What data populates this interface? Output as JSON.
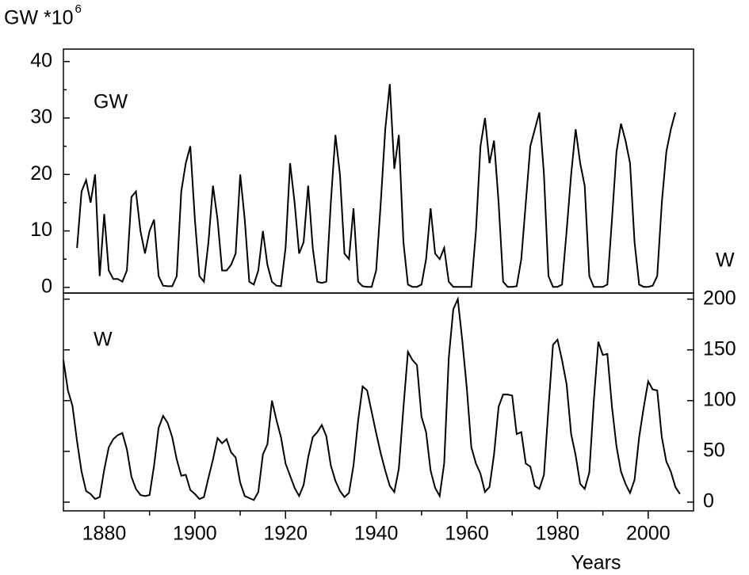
{
  "chart_data": [
    {
      "type": "line",
      "ylabel": "GW *10",
      "ylabel_exponent": "6",
      "annotation": "GW",
      "color": "#000000",
      "xlim": [
        1871,
        2010
      ],
      "ylim": [
        -1,
        42.2
      ],
      "yticks": [
        0,
        10,
        20,
        30,
        40
      ],
      "yminorticks": [
        5,
        15,
        25,
        35
      ],
      "x": [
        1874,
        1875,
        1876,
        1877,
        1878,
        1879,
        1880,
        1881,
        1882,
        1883,
        1884,
        1885,
        1886,
        1887,
        1888,
        1889,
        1890,
        1891,
        1892,
        1893,
        1894,
        1895,
        1896,
        1897,
        1898,
        1899,
        1900,
        1901,
        1902,
        1903,
        1904,
        1905,
        1906,
        1907,
        1908,
        1909,
        1910,
        1911,
        1912,
        1913,
        1914,
        1915,
        1916,
        1917,
        1918,
        1919,
        1920,
        1921,
        1922,
        1923,
        1924,
        1925,
        1926,
        1927,
        1928,
        1929,
        1930,
        1931,
        1932,
        1933,
        1934,
        1935,
        1936,
        1937,
        1938,
        1939,
        1940,
        1941,
        1942,
        1943,
        1944,
        1945,
        1946,
        1947,
        1948,
        1949,
        1950,
        1951,
        1952,
        1953,
        1954,
        1955,
        1956,
        1957,
        1958,
        1959,
        1960,
        1961,
        1962,
        1963,
        1964,
        1965,
        1966,
        1967,
        1968,
        1969,
        1970,
        1971,
        1972,
        1973,
        1974,
        1975,
        1976,
        1977,
        1978,
        1979,
        1980,
        1981,
        1982,
        1983,
        1984,
        1985,
        1986,
        1987,
        1988,
        1989,
        1990,
        1991,
        1992,
        1993,
        1994,
        1995,
        1996,
        1997,
        1998,
        1999,
        2000,
        2001,
        2002,
        2003,
        2004,
        2005,
        2006
      ],
      "values": [
        7,
        17,
        19,
        15,
        20,
        2,
        13,
        3,
        1.5,
        1.5,
        1,
        3,
        16,
        17,
        10,
        6,
        10,
        12,
        2,
        0.3,
        0.2,
        0.2,
        2,
        17,
        22,
        25,
        12,
        2,
        1,
        8,
        18,
        12,
        3,
        3,
        4,
        6,
        20,
        12,
        1,
        0.5,
        3,
        10,
        4,
        1,
        0.3,
        0.2,
        7,
        22,
        15,
        6,
        8,
        18,
        7,
        1,
        0.8,
        1,
        15,
        27,
        20,
        6,
        5,
        14,
        1,
        0.2,
        0.1,
        0.1,
        3,
        15,
        28,
        36,
        21,
        27,
        8,
        0.5,
        0.1,
        0.1,
        0.5,
        5,
        14,
        6,
        5,
        7,
        1,
        0.1,
        0.1,
        0.1,
        0.1,
        0.1,
        10,
        25,
        30,
        22,
        26,
        15,
        1,
        0.1,
        0.1,
        0.2,
        5,
        15,
        25,
        28,
        31,
        20,
        2,
        0.1,
        0.1,
        0.5,
        10,
        20,
        28,
        22,
        18,
        2,
        0.1,
        0.1,
        0.1,
        0.5,
        12,
        24,
        29,
        26,
        22,
        8,
        0.5,
        0.1,
        0.1,
        0.3,
        2,
        15,
        24,
        28,
        31
      ]
    },
    {
      "type": "line",
      "ylabel": "W",
      "ylabel_side": "right",
      "annotation": "W",
      "xlabel": "Years",
      "color": "#000000",
      "xlim": [
        1871,
        2010
      ],
      "xticks": [
        1880,
        1900,
        1920,
        1940,
        1960,
        1980,
        2000
      ],
      "xminorticks": [
        1890,
        1910,
        1930,
        1950,
        1970,
        1990
      ],
      "ylim": [
        -8.6,
        206
      ],
      "yticks": [
        0,
        50,
        100,
        150,
        200
      ],
      "x": [
        1871,
        1872,
        1873,
        1874,
        1875,
        1876,
        1877,
        1878,
        1879,
        1880,
        1881,
        1882,
        1883,
        1884,
        1885,
        1886,
        1887,
        1888,
        1889,
        1890,
        1891,
        1892,
        1893,
        1894,
        1895,
        1896,
        1897,
        1898,
        1899,
        1900,
        1901,
        1902,
        1903,
        1904,
        1905,
        1906,
        1907,
        1908,
        1909,
        1910,
        1911,
        1912,
        1913,
        1914,
        1915,
        1916,
        1917,
        1918,
        1919,
        1920,
        1921,
        1922,
        1923,
        1924,
        1925,
        1926,
        1927,
        1928,
        1929,
        1930,
        1931,
        1932,
        1933,
        1934,
        1935,
        1936,
        1937,
        1938,
        1939,
        1940,
        1941,
        1942,
        1943,
        1944,
        1945,
        1946,
        1947,
        1948,
        1949,
        1950,
        1951,
        1952,
        1953,
        1954,
        1955,
        1956,
        1957,
        1958,
        1959,
        1960,
        1961,
        1962,
        1963,
        1964,
        1965,
        1966,
        1967,
        1968,
        1969,
        1970,
        1971,
        1972,
        1973,
        1974,
        1975,
        1976,
        1977,
        1978,
        1979,
        1980,
        1981,
        1982,
        1983,
        1984,
        1985,
        1986,
        1987,
        1988,
        1989,
        1990,
        1991,
        1992,
        1993,
        1994,
        1995,
        1996,
        1997,
        1998,
        1999,
        2000,
        2001,
        2002,
        2003,
        2004,
        2005,
        2006,
        2007
      ],
      "values": [
        140,
        110,
        95,
        60,
        30,
        11,
        8,
        3,
        5,
        32,
        54,
        62,
        66,
        68,
        52,
        25,
        13,
        7,
        6,
        7,
        36,
        73,
        85,
        78,
        64,
        42,
        26,
        27,
        12,
        8,
        3,
        5,
        24,
        42,
        63,
        58,
        62,
        49,
        44,
        19,
        6,
        4,
        2,
        10,
        47,
        57,
        100,
        81,
        64,
        38,
        26,
        14,
        6,
        17,
        44,
        64,
        69,
        76,
        65,
        36,
        21,
        11,
        5,
        9,
        36,
        80,
        114,
        110,
        89,
        68,
        48,
        31,
        16,
        10,
        33,
        93,
        148,
        140,
        135,
        84,
        69,
        31,
        14,
        6,
        38,
        142,
        190,
        200,
        159,
        112,
        54,
        38,
        28,
        10,
        15,
        47,
        94,
        106,
        106,
        105,
        67,
        69,
        38,
        35,
        16,
        13,
        27,
        93,
        155,
        160,
        140,
        116,
        67,
        46,
        18,
        13,
        29,
        100,
        158,
        145,
        146,
        94,
        55,
        30,
        18,
        9,
        22,
        64,
        93,
        119,
        111,
        110,
        64,
        40,
        30,
        15,
        8
      ]
    }
  ]
}
